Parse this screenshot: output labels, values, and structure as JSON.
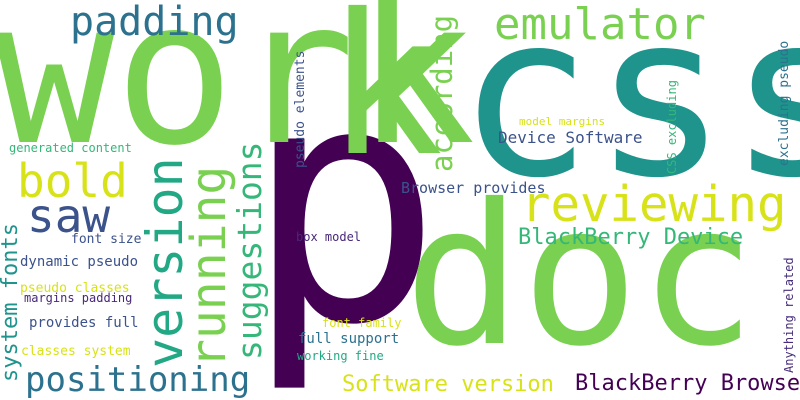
{
  "palette": {
    "green": "#7ad151",
    "teal": "#1f948c",
    "dark_teal": "#22a884",
    "navy": "#3b528b",
    "slate": "#2c728e",
    "purple": "#440154",
    "indigo": "#482878",
    "violet": "#472d7b",
    "yellow": "#d8e219",
    "lime": "#bddf26",
    "sea": "#35b779"
  },
  "words": [
    {
      "id": "word-p",
      "text": "p",
      "color": "#440154"
    },
    {
      "id": "word-work",
      "text": "work",
      "color": "#7ad151"
    },
    {
      "id": "word-css",
      "text": "css",
      "color": "#1f948c"
    },
    {
      "id": "word-doc",
      "text": "doc",
      "color": "#7ad151"
    },
    {
      "id": "word-k",
      "text": "k",
      "color": "#7ad151"
    },
    {
      "id": "word-padding",
      "text": "padding",
      "color": "#2c728e"
    },
    {
      "id": "word-emulator",
      "text": "emulator",
      "color": "#7ad151"
    },
    {
      "id": "word-reviewing",
      "text": "reviewing",
      "color": "#d8e219"
    },
    {
      "id": "word-bold",
      "text": "bold",
      "color": "#d8e219"
    },
    {
      "id": "word-saw",
      "text": "saw",
      "color": "#3b528b"
    },
    {
      "id": "word-version",
      "text": "version",
      "color": "#22a884"
    },
    {
      "id": "word-running",
      "text": "running",
      "color": "#7ad151"
    },
    {
      "id": "word-suggestions",
      "text": "suggestions",
      "color": "#35b779"
    },
    {
      "id": "word-according",
      "text": "according",
      "color": "#7ad151"
    },
    {
      "id": "word-positioning",
      "text": "positioning",
      "color": "#2c728e"
    },
    {
      "id": "word-blackberry-device",
      "text": "BlackBerry Device",
      "color": "#35b779"
    },
    {
      "id": "word-blackberry-browser",
      "text": "BlackBerry Browser",
      "color": "#440154"
    },
    {
      "id": "word-software-version",
      "text": "Software version",
      "color": "#d8e219"
    },
    {
      "id": "word-device-software",
      "text": "Device Software",
      "color": "#3b528b"
    },
    {
      "id": "word-browser-provides",
      "text": "Browser provides",
      "color": "#3b528b"
    },
    {
      "id": "word-system-fonts",
      "text": "system fonts",
      "color": "#1f948c"
    },
    {
      "id": "word-pseudo-elements",
      "text": "pseudo elements",
      "color": "#3b528b"
    },
    {
      "id": "word-model-margins",
      "text": "model margins",
      "color": "#d8e219"
    },
    {
      "id": "word-css-excluding",
      "text": "CSS excluding",
      "color": "#35b779"
    },
    {
      "id": "word-excluding-pseudo",
      "text": "excluding pseudo",
      "color": "#2c728e"
    },
    {
      "id": "word-anything-related",
      "text": "Anything related",
      "color": "#472d7b"
    },
    {
      "id": "word-generated-content",
      "text": "generated content",
      "color": "#35b779"
    },
    {
      "id": "word-font-size",
      "text": "font size",
      "color": "#3b528b"
    },
    {
      "id": "word-dynamic-pseudo",
      "text": "dynamic pseudo",
      "color": "#3b528b"
    },
    {
      "id": "word-pseudo-classes",
      "text": "pseudo classes",
      "color": "#d8e219"
    },
    {
      "id": "word-margins-padding",
      "text": "margins padding",
      "color": "#482878"
    },
    {
      "id": "word-provides-full",
      "text": "provides full",
      "color": "#3b528b"
    },
    {
      "id": "word-classes-system",
      "text": "classes system",
      "color": "#d8e219"
    },
    {
      "id": "word-box-model",
      "text": "box model",
      "color": "#482878"
    },
    {
      "id": "word-font-family",
      "text": "font family",
      "color": "#d8e219"
    },
    {
      "id": "word-full-support",
      "text": "full support",
      "color": "#2c728e"
    },
    {
      "id": "word-working-fine",
      "text": "working fine",
      "color": "#22a884"
    }
  ]
}
